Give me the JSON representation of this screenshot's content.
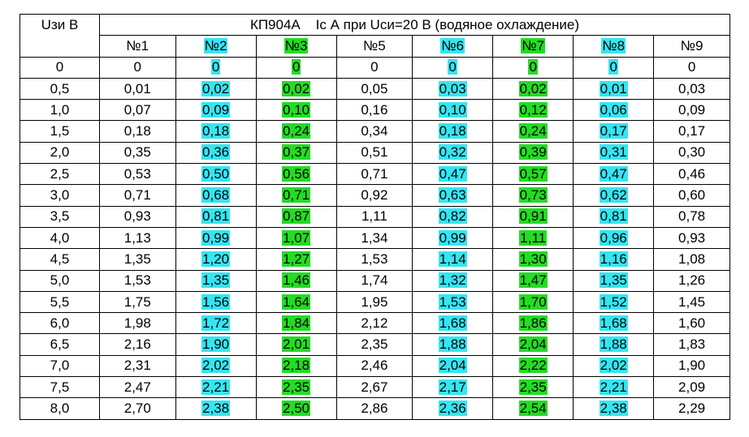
{
  "header": {
    "corner": "Uзи В",
    "title": "КП904А    Ic А при Uси=20 В (водяное охлаждение)",
    "columns": [
      {
        "label": "№1"
      },
      {
        "label": "№2",
        "highlight": "#33e6f2"
      },
      {
        "label": "№3",
        "highlight": "#22dd22"
      },
      {
        "label": "№5"
      },
      {
        "label": "№6",
        "highlight": "#33e6f2"
      },
      {
        "label": "№7",
        "highlight": "#22dd22"
      },
      {
        "label": "№8",
        "highlight": "#33e6f2"
      },
      {
        "label": "№9"
      }
    ]
  },
  "table": {
    "rows": [
      [
        "0",
        "0",
        "0",
        "0",
        "0",
        "0",
        "0",
        "0",
        "0"
      ],
      [
        "0,5",
        "0,01",
        "0,02",
        "0,02",
        "0,05",
        "0,03",
        "0,02",
        "0,01",
        "0,03"
      ],
      [
        "1,0",
        "0,07",
        "0,09",
        "0,10",
        "0,16",
        "0,10",
        "0,12",
        "0,06",
        "0,09"
      ],
      [
        "1,5",
        "0,18",
        "0,18",
        "0,24",
        "0,34",
        "0,18",
        "0,24",
        "0,17",
        "0,17"
      ],
      [
        "2,0",
        "0,35",
        "0,36",
        "0,37",
        "0,51",
        "0,32",
        "0,39",
        "0,31",
        "0,30"
      ],
      [
        "2,5",
        "0,53",
        "0,50",
        "0,56",
        "0,71",
        "0,47",
        "0,57",
        "0,47",
        "0,46"
      ],
      [
        "3,0",
        "0,71",
        "0,68",
        "0,71",
        "0,92",
        "0,63",
        "0,73",
        "0,62",
        "0,60"
      ],
      [
        "3,5",
        "0,93",
        "0,81",
        "0,87",
        "1,11",
        "0,82",
        "0,91",
        "0,81",
        "0,78"
      ],
      [
        "4,0",
        "1,13",
        "0,99",
        "1,07",
        "1,34",
        "0,99",
        "1,11",
        "0,96",
        "0,93"
      ],
      [
        "4,5",
        "1,35",
        "1,20",
        "1,27",
        "1,53",
        "1,14",
        "1,30",
        "1,16",
        "1,08"
      ],
      [
        "5,0",
        "1,53",
        "1,35",
        "1,46",
        "1,74",
        "1,32",
        "1,47",
        "1,35",
        "1,26"
      ],
      [
        "5,5",
        "1,75",
        "1,56",
        "1,64",
        "1,95",
        "1,53",
        "1,70",
        "1,52",
        "1,45"
      ],
      [
        "6,0",
        "1,98",
        "1,72",
        "1,84",
        "2,12",
        "1,68",
        "1,86",
        "1,68",
        "1,60"
      ],
      [
        "6,5",
        "2,16",
        "1,90",
        "2,01",
        "2,35",
        "1,88",
        "2,04",
        "1,88",
        "1,83"
      ],
      [
        "7,0",
        "2,31",
        "2,02",
        "2,18",
        "2,46",
        "2,04",
        "2,22",
        "2,02",
        "1,90"
      ],
      [
        "7,5",
        "2,47",
        "2,21",
        "2,35",
        "2,67",
        "2,17",
        "2,35",
        "2,21",
        "2,09"
      ],
      [
        "8,0",
        "2,70",
        "2,38",
        "2,50",
        "2,86",
        "2,36",
        "2,54",
        "2,38",
        "2,29"
      ]
    ]
  }
}
